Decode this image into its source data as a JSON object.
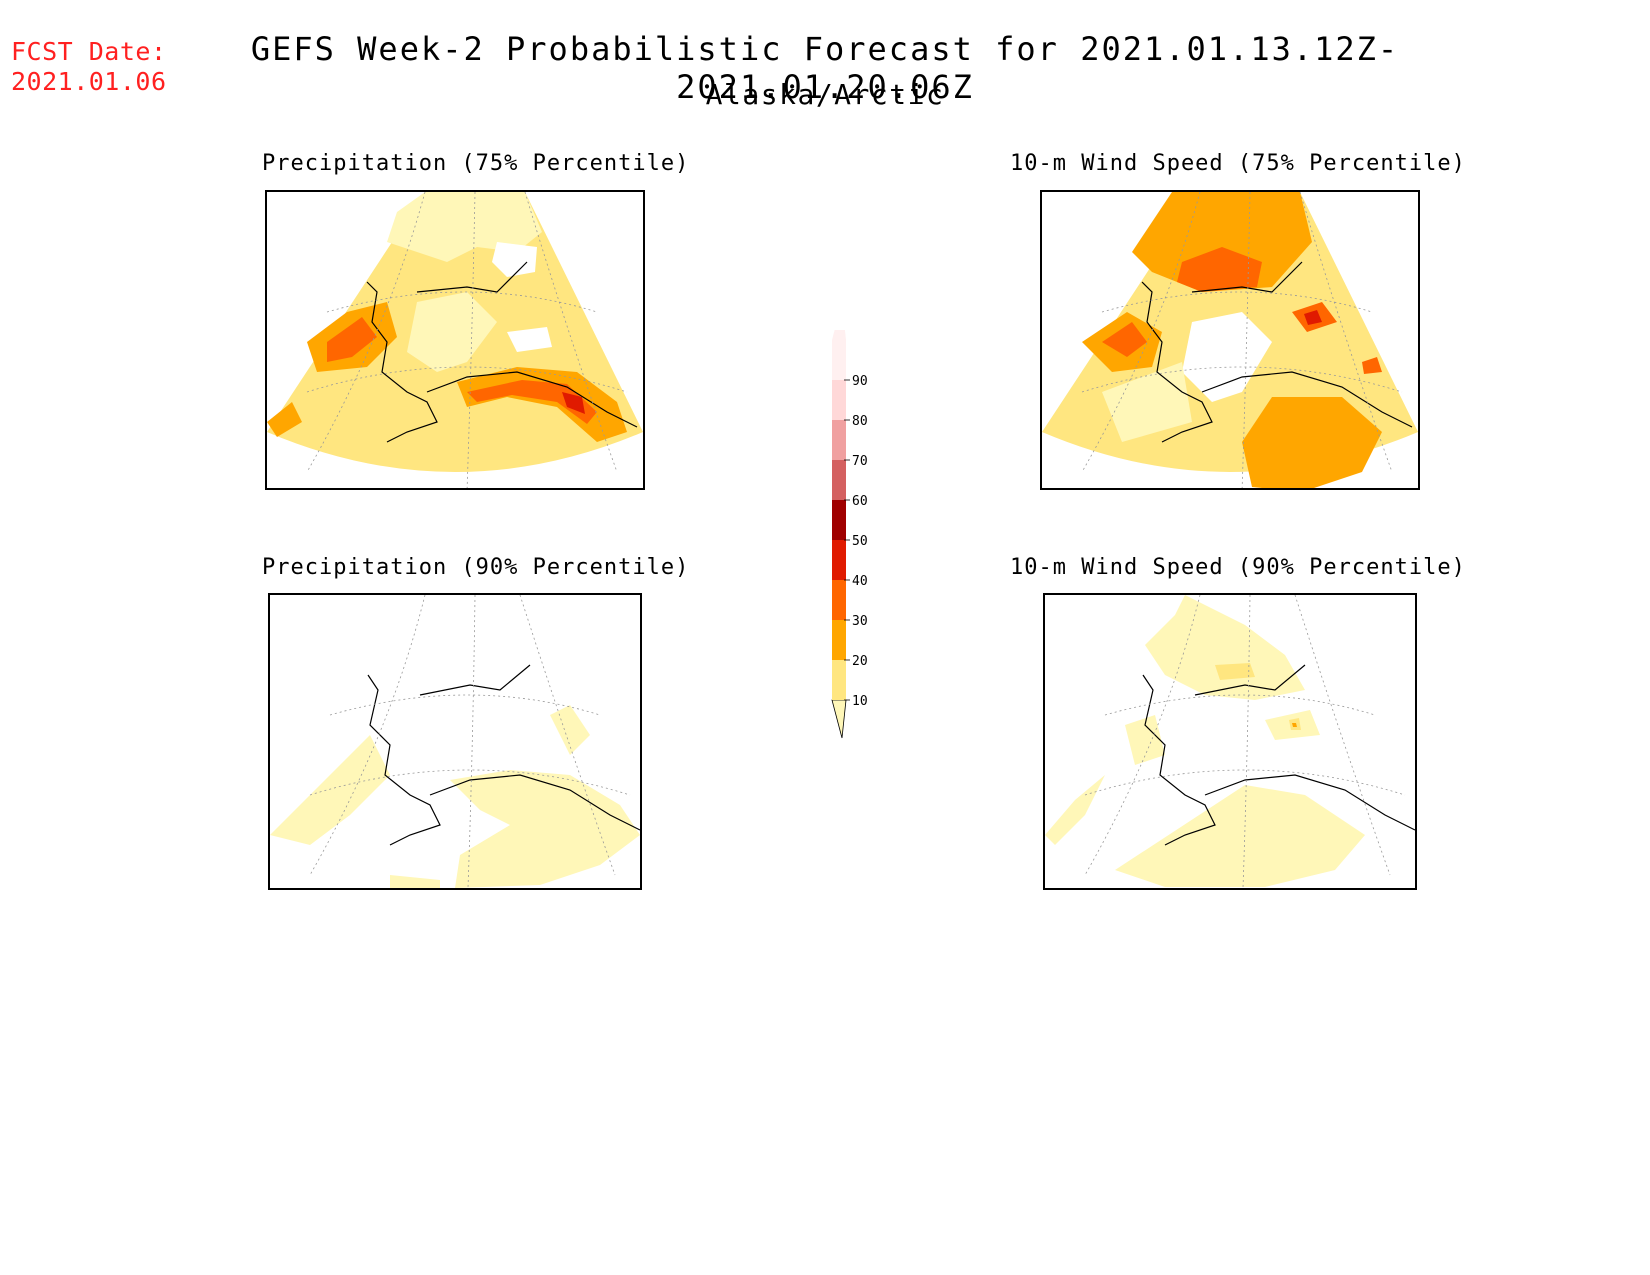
{
  "header": {
    "fcst_label": "FCST Date:",
    "fcst_date": "2021.01.06",
    "title": "GEFS Week-2 Probabilistic Forecast for 2021.01.13.12Z-2021.01.20.06Z",
    "region": "Alaska/Arctic"
  },
  "panels": {
    "precip75": {
      "title": "Precipitation (75% Percentile)"
    },
    "wind75": {
      "title": "10-m Wind Speed (75% Percentile)"
    },
    "precip90": {
      "title": "Precipitation (90% Percentile)"
    },
    "wind90": {
      "title": "10-m Wind Speed (90% Percentile)"
    }
  },
  "colorbar": {
    "levels": [
      "10",
      "20",
      "30",
      "40",
      "50",
      "60",
      "70",
      "80",
      "90"
    ],
    "colors": [
      "#fff7b8",
      "#ffe680",
      "#ffa600",
      "#ff6600",
      "#e01a00",
      "#a00000",
      "#d46060",
      "#f0a0a0",
      "#ffd8d8",
      "#fff0f0"
    ]
  }
}
